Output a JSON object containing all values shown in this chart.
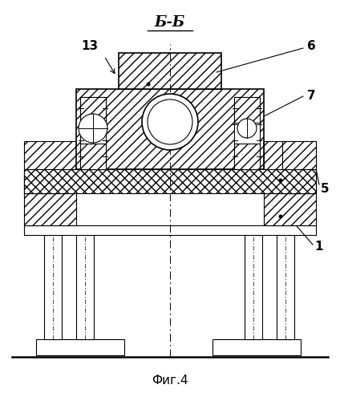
{
  "title": "Б-Б",
  "fig_label": "Фиг.4",
  "bg_color": "#ffffff",
  "line_color": "#000000",
  "figsize": [
    4.24,
    5.0
  ],
  "dpi": 100
}
